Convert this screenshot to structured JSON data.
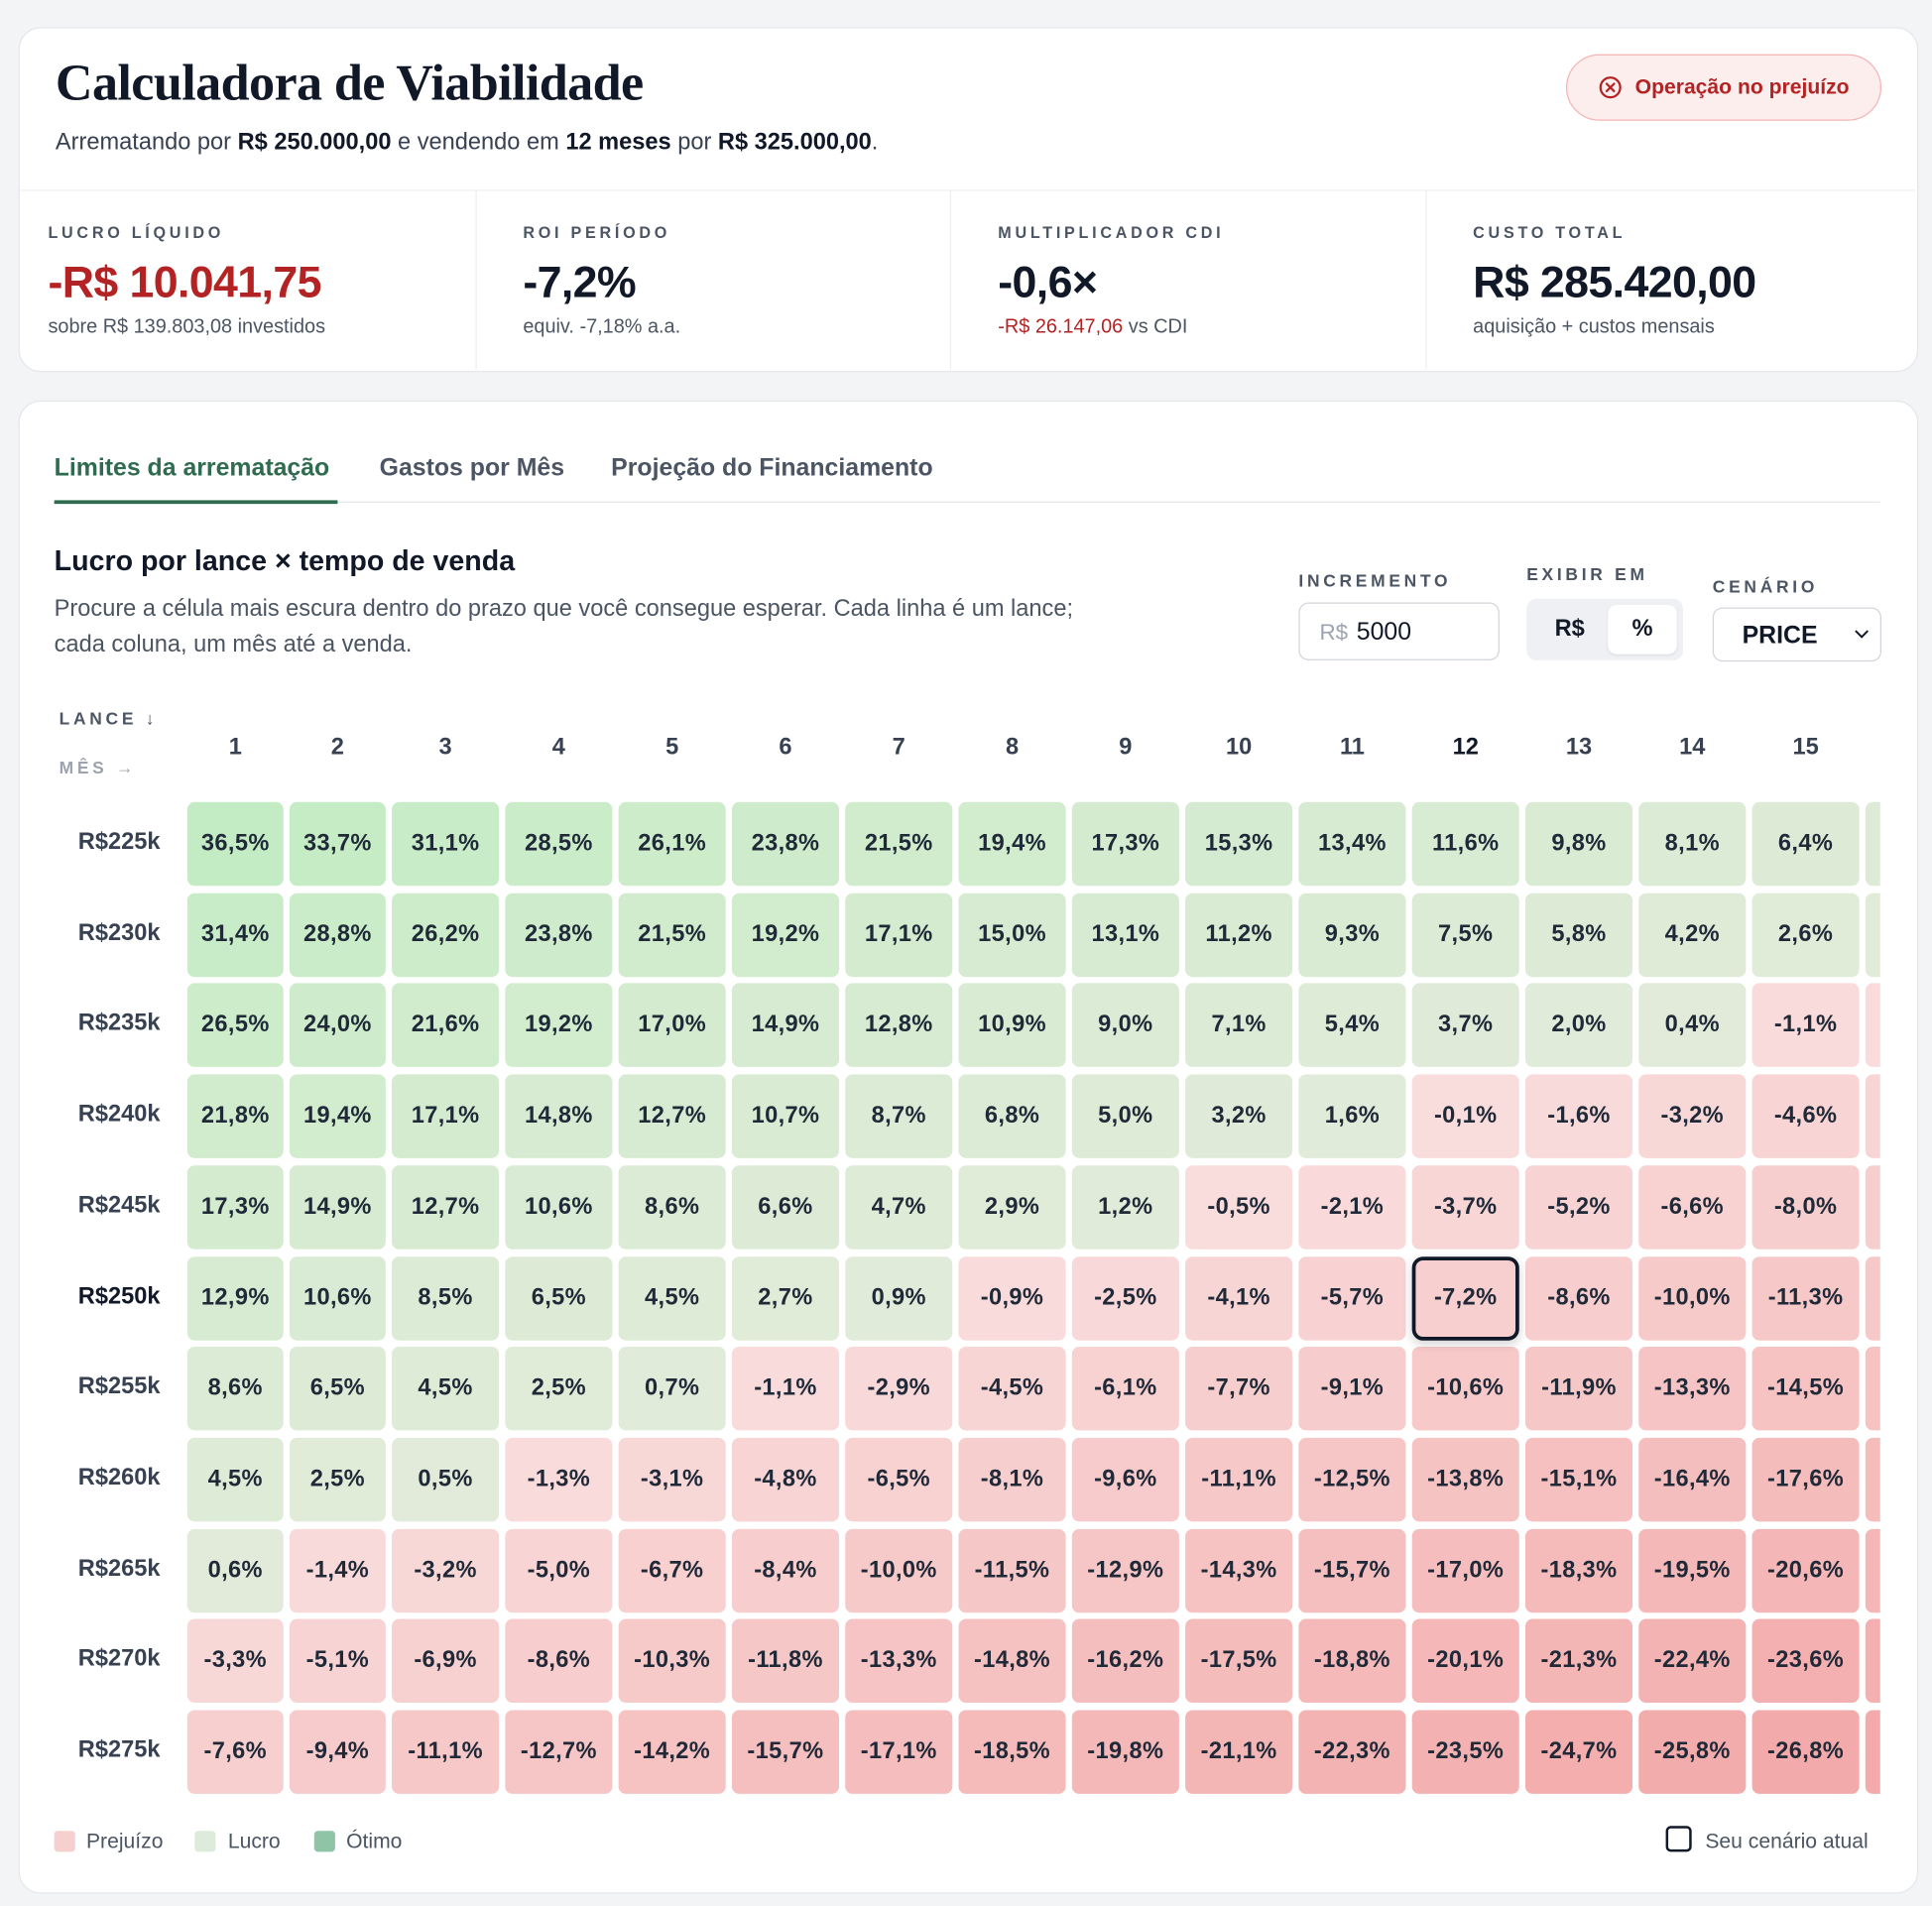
{
  "header": {
    "title": "Calculadora de Viabilidade",
    "subtitle": {
      "prefix": "Arrematando por",
      "bid": "R$ 250.000,00",
      "middle": "e vendendo em",
      "months": "12 meses",
      "joiner": "por",
      "price": "R$ 325.000,00",
      "end": "."
    },
    "status": "Operação no prejuízo"
  },
  "metrics": [
    {
      "label": "LUCRO LÍQUIDO",
      "value": "-R$ 10.041,75",
      "note": "sobre R$ 139.803,08 investidos"
    },
    {
      "label": "ROI PERÍODO",
      "value": "-7,2%",
      "note": "equiv. -7,18% a.a."
    },
    {
      "label": "MULTIPLICADOR CDI",
      "value": "-0,6×",
      "note_highlight": "-R$ 26.147,06",
      "note": "vs CDI"
    },
    {
      "label": "CUSTO TOTAL",
      "value": "R$ 285.420,00",
      "note": "aquisição + custos mensais"
    }
  ],
  "tabs": [
    "Limites da arrematação",
    "Gastos por Mês",
    "Projeção do Financiamento"
  ],
  "section": {
    "title": "Lucro por lance × tempo de venda",
    "description": "Procure a célula mais escura dentro do prazo que você consegue esperar. Cada linha é um lance; cada coluna, um mês até a venda."
  },
  "controls": {
    "increment_label": "INCREMENTO",
    "increment_prefix": "R$",
    "increment_value": "5000",
    "display_label": "EXIBIR EM",
    "display_options": [
      "R$",
      "%"
    ],
    "display_selected": "%",
    "scenario_label": "CENÁRIO",
    "scenario_value": "PRICE"
  },
  "table": {
    "corner_row": "LANCE ↓",
    "corner_col": "MÊS →",
    "months": [
      1,
      2,
      3,
      4,
      5,
      6,
      7,
      8,
      9,
      10,
      11,
      12,
      13,
      14,
      15
    ],
    "current": {
      "bid": "R$250k",
      "month": 12
    },
    "rows": [
      {
        "bid": "R$225k",
        "cells": [
          "36,5%",
          "33,7%",
          "31,1%",
          "28,5%",
          "26,1%",
          "23,8%",
          "21,5%",
          "19,4%",
          "17,3%",
          "15,3%",
          "13,4%",
          "11,6%",
          "9,8%",
          "8,1%",
          "6,4%"
        ]
      },
      {
        "bid": "R$230k",
        "cells": [
          "31,4%",
          "28,8%",
          "26,2%",
          "23,8%",
          "21,5%",
          "19,2%",
          "17,1%",
          "15,0%",
          "13,1%",
          "11,2%",
          "9,3%",
          "7,5%",
          "5,8%",
          "4,2%",
          "2,6%"
        ]
      },
      {
        "bid": "R$235k",
        "cells": [
          "26,5%",
          "24,0%",
          "21,6%",
          "19,2%",
          "17,0%",
          "14,9%",
          "12,8%",
          "10,9%",
          "9,0%",
          "7,1%",
          "5,4%",
          "3,7%",
          "2,0%",
          "0,4%",
          "-1,1%"
        ]
      },
      {
        "bid": "R$240k",
        "cells": [
          "21,8%",
          "19,4%",
          "17,1%",
          "14,8%",
          "12,7%",
          "10,7%",
          "8,7%",
          "6,8%",
          "5,0%",
          "3,2%",
          "1,6%",
          "-0,1%",
          "-1,6%",
          "-3,2%",
          "-4,6%"
        ]
      },
      {
        "bid": "R$245k",
        "cells": [
          "17,3%",
          "14,9%",
          "12,7%",
          "10,6%",
          "8,6%",
          "6,6%",
          "4,7%",
          "2,9%",
          "1,2%",
          "-0,5%",
          "-2,1%",
          "-3,7%",
          "-5,2%",
          "-6,6%",
          "-8,0%"
        ]
      },
      {
        "bid": "R$250k",
        "cells": [
          "12,9%",
          "10,6%",
          "8,5%",
          "6,5%",
          "4,5%",
          "2,7%",
          "0,9%",
          "-0,9%",
          "-2,5%",
          "-4,1%",
          "-5,7%",
          "-7,2%",
          "-8,6%",
          "-10,0%",
          "-11,3%"
        ]
      },
      {
        "bid": "R$255k",
        "cells": [
          "8,6%",
          "6,5%",
          "4,5%",
          "2,5%",
          "0,7%",
          "-1,1%",
          "-2,9%",
          "-4,5%",
          "-6,1%",
          "-7,7%",
          "-9,1%",
          "-10,6%",
          "-11,9%",
          "-13,3%",
          "-14,5%"
        ]
      },
      {
        "bid": "R$260k",
        "cells": [
          "4,5%",
          "2,5%",
          "0,5%",
          "-1,3%",
          "-3,1%",
          "-4,8%",
          "-6,5%",
          "-8,1%",
          "-9,6%",
          "-11,1%",
          "-12,5%",
          "-13,8%",
          "-15,1%",
          "-16,4%",
          "-17,6%"
        ]
      },
      {
        "bid": "R$265k",
        "cells": [
          "0,6%",
          "-1,4%",
          "-3,2%",
          "-5,0%",
          "-6,7%",
          "-8,4%",
          "-10,0%",
          "-11,5%",
          "-12,9%",
          "-14,3%",
          "-15,7%",
          "-17,0%",
          "-18,3%",
          "-19,5%",
          "-20,6%"
        ]
      },
      {
        "bid": "R$270k",
        "cells": [
          "-3,3%",
          "-5,1%",
          "-6,9%",
          "-8,6%",
          "-10,3%",
          "-11,8%",
          "-13,3%",
          "-14,8%",
          "-16,2%",
          "-17,5%",
          "-18,8%",
          "-20,1%",
          "-21,3%",
          "-22,4%",
          "-23,6%"
        ]
      },
      {
        "bid": "R$275k",
        "cells": [
          "-7,6%",
          "-9,4%",
          "-11,1%",
          "-12,7%",
          "-14,2%",
          "-15,7%",
          "-17,1%",
          "-18,5%",
          "-19,8%",
          "-21,1%",
          "-22,3%",
          "-23,5%",
          "-24,7%",
          "-25,8%",
          "-26,8%"
        ]
      }
    ]
  },
  "legend": {
    "loss": "Prejuízo",
    "profit": "Lucro",
    "great": "Ótimo",
    "current": "Seu cenário atual"
  }
}
